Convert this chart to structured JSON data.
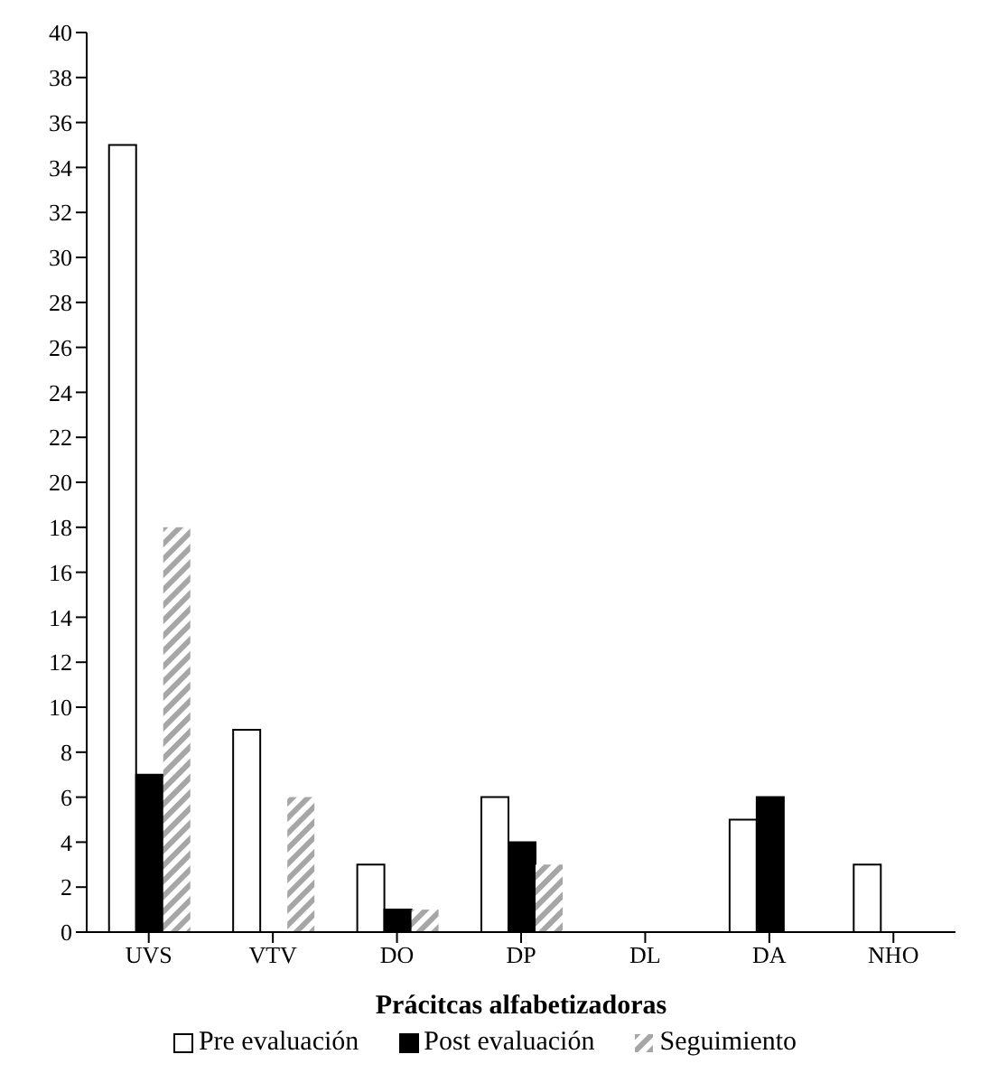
{
  "chart_data": {
    "type": "bar",
    "xlabel": "Prácitcas alfabetizadoras",
    "categories": [
      "UVS",
      "VTV",
      "DO",
      "DP",
      "DL",
      "DA",
      "NHO"
    ],
    "series": [
      {
        "name": "Pre evaluación",
        "color": "#ffffff",
        "values": [
          35,
          9,
          3,
          6,
          0,
          5,
          3
        ]
      },
      {
        "name": "Post evaluación",
        "color": "#000000",
        "values": [
          7,
          0,
          1,
          4,
          0,
          6,
          0
        ]
      },
      {
        "name": "Seguimiento",
        "color": "#a6a6a6",
        "values": [
          18,
          6,
          1,
          3,
          0,
          0,
          0
        ]
      }
    ],
    "ylim": [
      0,
      40
    ],
    "yticks": [
      0,
      2,
      4,
      6,
      8,
      10,
      12,
      14,
      16,
      18,
      20,
      22,
      24,
      26,
      28,
      30,
      32,
      34,
      36,
      38,
      40
    ],
    "grid": false,
    "legend": "bottom"
  }
}
